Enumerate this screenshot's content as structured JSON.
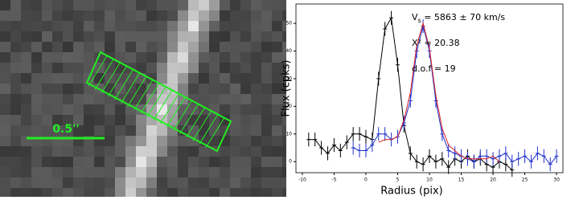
{
  "image_panel": {
    "scale_label": "0.5''"
  },
  "chart_data": {
    "type": "line",
    "xlabel": "Radius (pix)",
    "ylabel": "Flux (cpks)",
    "annotations": [
      {
        "main": "V",
        "sub": "s",
        "rest": " = 5863 ± 70 km/s"
      },
      {
        "main": "X²",
        "sub": "",
        "rest": " = 20.38"
      },
      {
        "main": "d.o.f = 19",
        "sub": "",
        "rest": ""
      }
    ],
    "xlim": [
      -11,
      31
    ],
    "ylim": [
      -4,
      57
    ],
    "xticks": [
      -10,
      -5,
      0,
      5,
      10,
      15,
      20,
      25,
      30
    ],
    "yticks": [
      0,
      10,
      20,
      30,
      40,
      50
    ],
    "series": [
      {
        "color": "#000000",
        "error": 2.5,
        "x": [
          -9,
          -8,
          -7,
          -6,
          -5,
          -4,
          -3,
          -2,
          -1,
          0,
          1,
          2,
          3,
          4,
          5,
          6,
          7,
          8,
          9,
          10,
          11,
          12,
          13,
          14,
          15,
          16,
          17,
          18,
          19,
          20,
          21,
          22,
          23
        ],
        "values": [
          8,
          8,
          5,
          3,
          6,
          4,
          7,
          10,
          10,
          9,
          8,
          30,
          48,
          52,
          35,
          13,
          3,
          0,
          -1,
          2,
          0,
          1,
          -2,
          1,
          0,
          2,
          0,
          1,
          -1,
          -2,
          0,
          -1,
          -3
        ]
      },
      {
        "color": "#2233cc",
        "error": 2.5,
        "x": [
          -2,
          -1,
          0,
          1,
          2,
          3,
          4,
          5,
          6,
          7,
          8,
          9,
          10,
          11,
          12,
          13,
          14,
          15,
          16,
          17,
          18,
          19,
          20,
          21,
          22,
          23,
          24,
          25,
          26,
          27,
          28,
          29,
          30
        ],
        "values": [
          5,
          4,
          4,
          6,
          10,
          10,
          8,
          9,
          14,
          22,
          40,
          49,
          40,
          22,
          10,
          4,
          3,
          2,
          1,
          0,
          2,
          2,
          1,
          2,
          3,
          0,
          1,
          2,
          0,
          3,
          2,
          -1,
          2
        ]
      },
      {
        "color": "#dd2222",
        "x": [
          2,
          3,
          4,
          5,
          6,
          7,
          8,
          9,
          10,
          11,
          12,
          13,
          14,
          15,
          16,
          17,
          18,
          19,
          20,
          21
        ],
        "values": [
          7,
          8,
          8,
          9,
          15,
          25,
          42,
          50,
          41,
          24,
          12,
          6,
          4,
          2,
          1,
          1,
          1,
          1,
          2,
          0
        ]
      }
    ]
  }
}
